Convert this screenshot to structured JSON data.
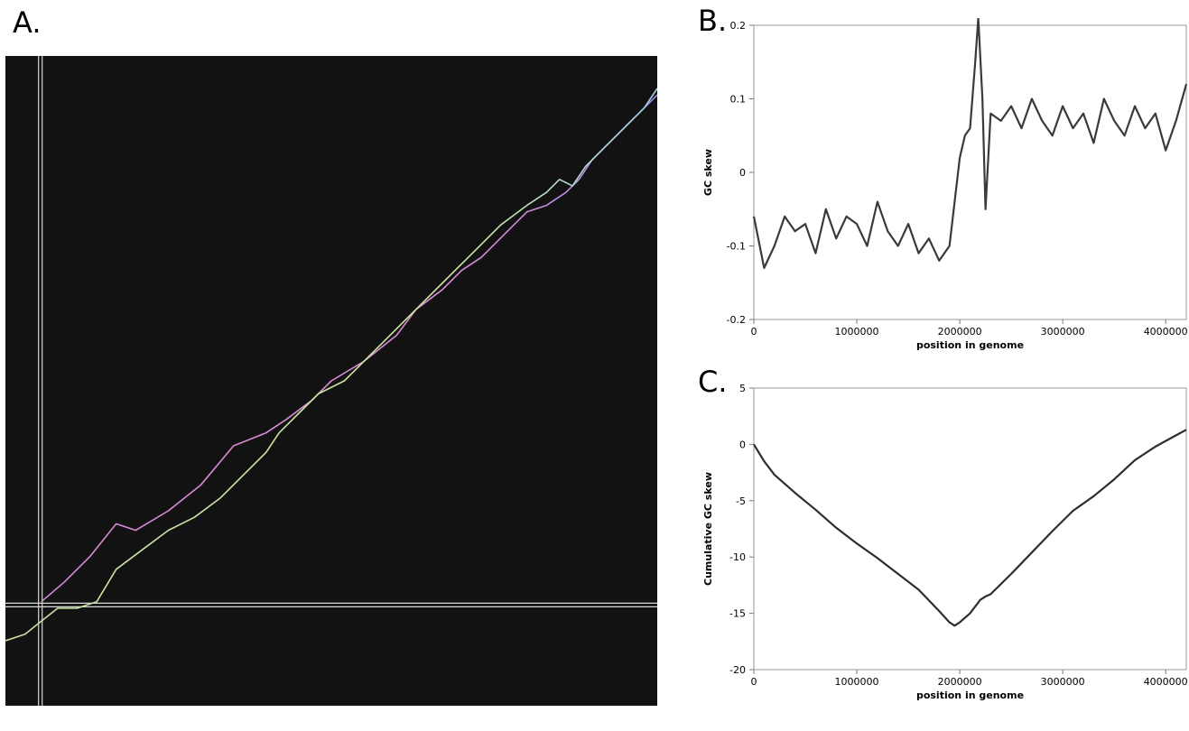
{
  "panels": {
    "a": "A.",
    "b": "B.",
    "c": "C."
  },
  "chart_data": [
    {
      "type": "line",
      "panel": "A.",
      "title": "",
      "xlabel": "",
      "ylabel": "",
      "background": "#121212",
      "grid": false,
      "xlim": [
        0,
        100
      ],
      "ylim": [
        0,
        100
      ],
      "crosshair": {
        "x": 5.5,
        "y": 15.5,
        "color": "#d8d8d8"
      },
      "series": [
        {
          "color": "#d98ad6",
          "end_color": "#9b8ee8",
          "x": [
            5.5,
            9,
            13,
            17,
            20,
            25,
            30,
            35,
            40,
            43,
            47,
            50,
            55,
            60,
            63,
            67,
            70,
            73,
            77,
            80,
            83,
            86,
            88,
            90,
            92,
            94,
            96,
            98,
            100
          ],
          "y": [
            16,
            19,
            23,
            28,
            27,
            30,
            34,
            40,
            42,
            44,
            47,
            50,
            53,
            57,
            61,
            64,
            67,
            69,
            73,
            76,
            77,
            79,
            81,
            84,
            86,
            88,
            90,
            92,
            94
          ]
        },
        {
          "color": "#c9e4a0",
          "end_color": "#9fd1e8",
          "x": [
            0,
            3,
            5.5,
            8,
            11,
            14,
            17,
            21,
            25,
            29,
            33,
            37,
            40,
            42,
            45,
            48,
            52,
            55,
            58,
            61,
            64,
            67,
            70,
            73,
            76,
            80,
            83,
            85,
            87,
            89,
            92,
            95,
            98,
            100
          ],
          "y": [
            10,
            11,
            13,
            15,
            15,
            16,
            21,
            24,
            27,
            29,
            32,
            36,
            39,
            42,
            45,
            48,
            50,
            53,
            56,
            59,
            62,
            65,
            68,
            71,
            74,
            77,
            79,
            81,
            80,
            83,
            86,
            89,
            92,
            95
          ]
        }
      ]
    },
    {
      "type": "line",
      "panel": "B.",
      "title": "",
      "xlabel": "position in genome",
      "ylabel": "GC skew",
      "xlim": [
        0,
        4200000
      ],
      "ylim": [
        -0.2,
        0.2
      ],
      "grid": false,
      "xticks": [
        0,
        1000000,
        2000000,
        3000000,
        4000000
      ],
      "yticks": [
        -0.2,
        -0.1,
        0,
        0.1,
        0.2
      ],
      "series": [
        {
          "color": "#3a3a3a",
          "x": [
            0,
            100000,
            200000,
            300000,
            400000,
            500000,
            600000,
            700000,
            800000,
            900000,
            1000000,
            1100000,
            1200000,
            1300000,
            1400000,
            1500000,
            1600000,
            1700000,
            1800000,
            1900000,
            1950000,
            2000000,
            2050000,
            2100000,
            2150000,
            2180000,
            2220000,
            2250000,
            2300000,
            2400000,
            2500000,
            2600000,
            2700000,
            2800000,
            2900000,
            3000000,
            3100000,
            3200000,
            3300000,
            3400000,
            3500000,
            3600000,
            3700000,
            3800000,
            3900000,
            4000000,
            4100000,
            4200000
          ],
          "y": [
            -0.06,
            -0.13,
            -0.1,
            -0.06,
            -0.08,
            -0.07,
            -0.11,
            -0.05,
            -0.09,
            -0.06,
            -0.07,
            -0.1,
            -0.04,
            -0.08,
            -0.1,
            -0.07,
            -0.11,
            -0.09,
            -0.12,
            -0.1,
            -0.04,
            0.02,
            0.05,
            0.06,
            0.15,
            0.21,
            0.1,
            -0.05,
            0.08,
            0.07,
            0.09,
            0.06,
            0.1,
            0.07,
            0.05,
            0.09,
            0.06,
            0.08,
            0.04,
            0.1,
            0.07,
            0.05,
            0.09,
            0.06,
            0.08,
            0.03,
            0.07,
            0.12
          ]
        }
      ]
    },
    {
      "type": "line",
      "panel": "C.",
      "title": "",
      "xlabel": "position in genome",
      "ylabel": "Cumulative GC skew",
      "xlim": [
        0,
        4200000
      ],
      "ylim": [
        -20,
        5
      ],
      "grid": false,
      "xticks": [
        0,
        1000000,
        2000000,
        3000000,
        4000000
      ],
      "yticks": [
        -20,
        -15,
        -10,
        -5,
        0,
        5
      ],
      "series": [
        {
          "color": "#2e2e2e",
          "x": [
            0,
            100000,
            200000,
            400000,
            600000,
            800000,
            1000000,
            1200000,
            1400000,
            1600000,
            1800000,
            1900000,
            1950000,
            2000000,
            2100000,
            2200000,
            2250000,
            2300000,
            2500000,
            2700000,
            2900000,
            3100000,
            3300000,
            3500000,
            3700000,
            3900000,
            4100000,
            4200000
          ],
          "y": [
            0,
            -1.5,
            -2.7,
            -4.3,
            -5.8,
            -7.4,
            -8.8,
            -10.1,
            -11.5,
            -12.9,
            -14.8,
            -15.8,
            -16.1,
            -15.8,
            -15.0,
            -13.8,
            -13.5,
            -13.3,
            -11.5,
            -9.6,
            -7.7,
            -5.9,
            -4.6,
            -3.1,
            -1.4,
            -0.2,
            0.8,
            1.3
          ]
        }
      ]
    }
  ]
}
